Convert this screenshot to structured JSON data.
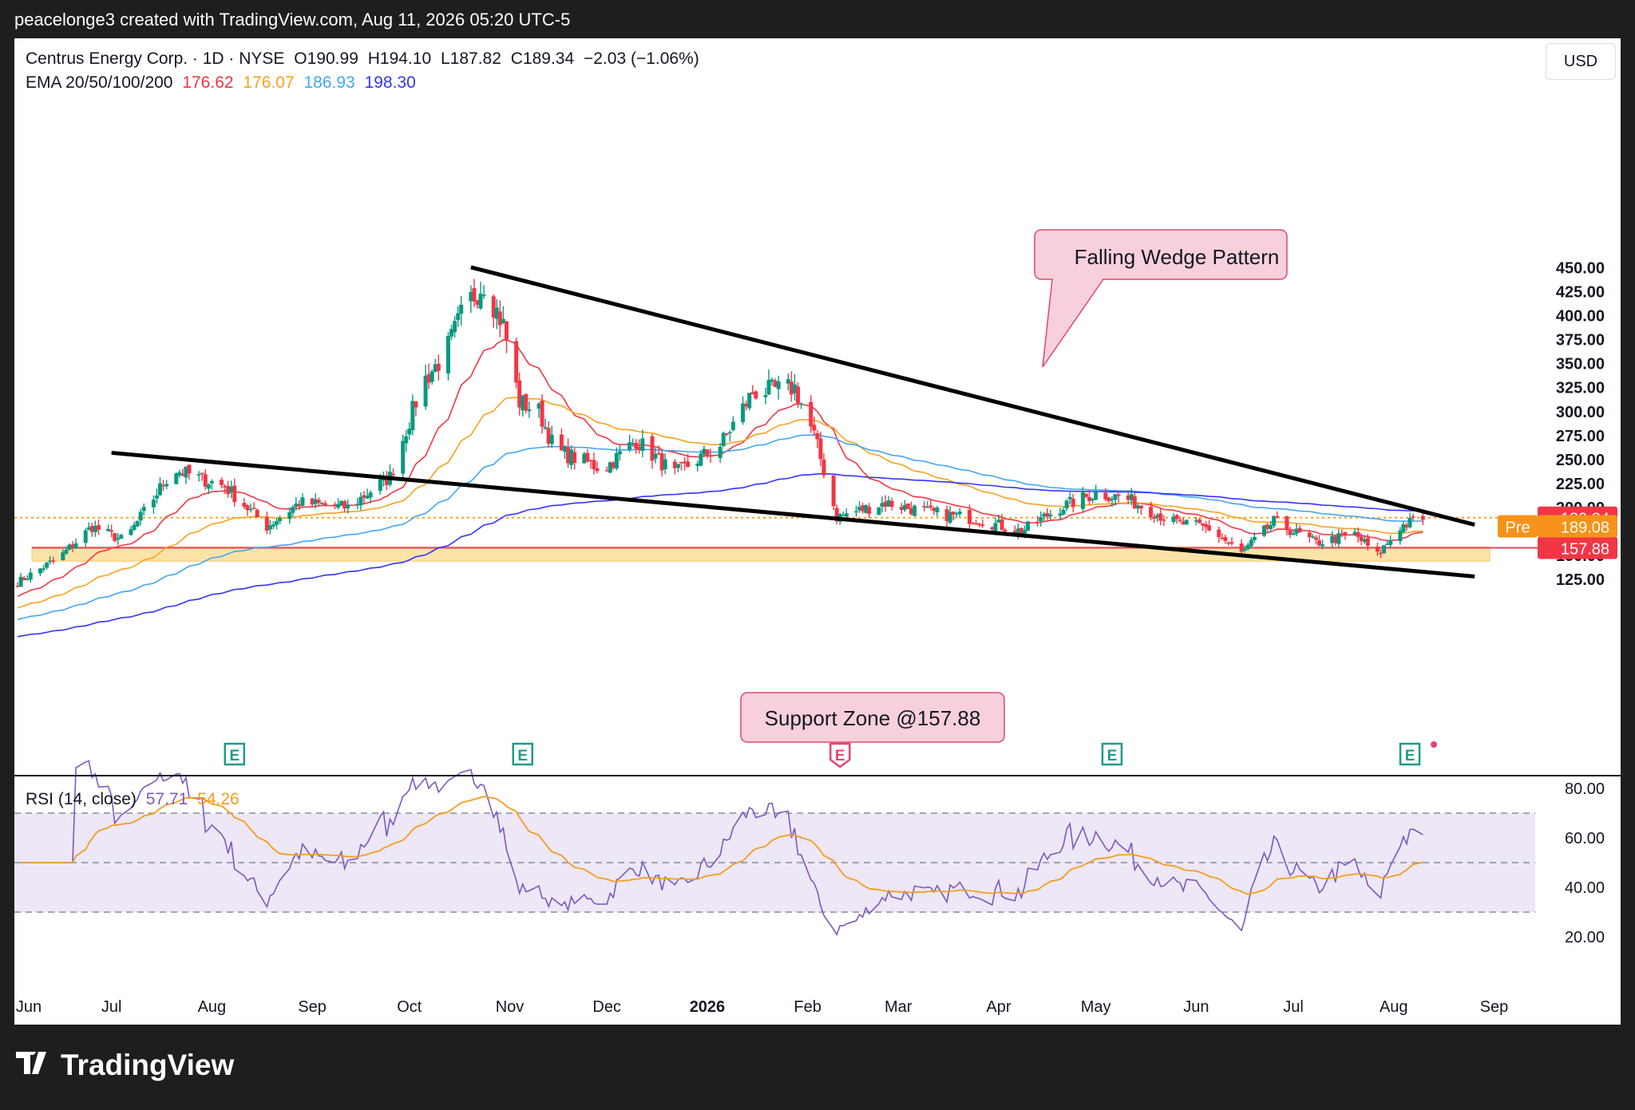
{
  "header": {
    "attribution": "peacelonge3 created with TradingView.com, Aug 11, 2026 05:20 UTC-5"
  },
  "legend": {
    "symbol": "Centrus Energy Corp. · 1D · NYSE",
    "open_label": "O",
    "open": "190.99",
    "high_label": "H",
    "high": "194.10",
    "low_label": "L",
    "low": "187.82",
    "close_label": "C",
    "close": "189.34",
    "change": "−2.03 (−1.06%)",
    "ema_label": "EMA 20/50/100/200",
    "ema_values": [
      "176.62",
      "176.07",
      "186.93",
      "198.30"
    ],
    "rsi_label": "RSI (14, close)",
    "rsi_values": [
      "57.71",
      "54.26"
    ]
  },
  "currency_button": "USD",
  "colors": {
    "up": "#089981",
    "down": "#f23645",
    "ema20": "#f23645",
    "ema50": "#f7a21b",
    "ema100": "#42a5f5",
    "ema200": "#3333ff",
    "rsi": "#7e57c2",
    "rsi_ma": "#f59d1d",
    "support_fill": "#fbe3a8",
    "annotation_fill": "#f8d0dc",
    "annotation_border": "#e0476e"
  },
  "price_axis": {
    "ticks": [
      "450.00",
      "425.00",
      "400.00",
      "375.00",
      "350.00",
      "325.00",
      "300.00",
      "275.00",
      "250.00",
      "225.00",
      "200.00",
      "150.00",
      "125.00"
    ]
  },
  "price_labels": {
    "last": "189.34",
    "pre_label": "Pre",
    "pre": "189.08",
    "support": "157.88"
  },
  "rsi_axis": {
    "ticks": [
      "80.00",
      "60.00",
      "40.00",
      "20.00"
    ]
  },
  "time_axis": {
    "labels": [
      "Jun",
      "Jul",
      "Aug",
      "Sep",
      "Oct",
      "Nov",
      "Dec",
      "2026",
      "Feb",
      "Mar",
      "Apr",
      "May",
      "Jun",
      "Jul",
      "Aug",
      "Sep"
    ]
  },
  "annotations": {
    "wedge": "Falling Wedge Pattern",
    "support": "Support Zone @157.88"
  },
  "earnings_marker": "E",
  "brand": "TradingView",
  "chart_data": {
    "type": "candlestick",
    "title": "Centrus Energy Corp. · 1D · NYSE",
    "ylim": [
      100,
      470
    ],
    "x_range": [
      "2025-06-01",
      "2026-09-10"
    ],
    "closing_path": [
      [
        "2025-06-01",
        120
      ],
      [
        "2025-06-15",
        148
      ],
      [
        "2025-06-25",
        180
      ],
      [
        "2025-07-05",
        165
      ],
      [
        "2025-07-20",
        240
      ],
      [
        "2025-08-05",
        222
      ],
      [
        "2025-08-18",
        180
      ],
      [
        "2025-08-28",
        205
      ],
      [
        "2025-09-12",
        200
      ],
      [
        "2025-09-25",
        232
      ],
      [
        "2025-10-05",
        330
      ],
      [
        "2025-10-12",
        360
      ],
      [
        "2025-10-18",
        408
      ],
      [
        "2025-10-24",
        435
      ],
      [
        "2025-10-30",
        390
      ],
      [
        "2025-11-04",
        310
      ],
      [
        "2025-11-10",
        300
      ],
      [
        "2025-11-15",
        260
      ],
      [
        "2025-11-30",
        240
      ],
      [
        "2025-12-10",
        270
      ],
      [
        "2025-12-22",
        235
      ],
      [
        "2026-01-05",
        265
      ],
      [
        "2026-01-15",
        320
      ],
      [
        "2026-01-28",
        325
      ],
      [
        "2026-02-03",
        275
      ],
      [
        "2026-02-10",
        190
      ],
      [
        "2026-02-25",
        205
      ],
      [
        "2026-03-10",
        195
      ],
      [
        "2026-03-25",
        188
      ],
      [
        "2026-04-08",
        175
      ],
      [
        "2026-04-20",
        200
      ],
      [
        "2026-05-01",
        215
      ],
      [
        "2026-05-10",
        210
      ],
      [
        "2026-05-25",
        185
      ],
      [
        "2026-06-05",
        178
      ],
      [
        "2026-06-15",
        152
      ],
      [
        "2026-06-25",
        185
      ],
      [
        "2026-07-08",
        163
      ],
      [
        "2026-07-20",
        172
      ],
      [
        "2026-07-27",
        150
      ],
      [
        "2026-08-03",
        180
      ],
      [
        "2026-08-10",
        189.34
      ]
    ],
    "ema": [
      {
        "name": "EMA 20",
        "last": 176.62
      },
      {
        "name": "EMA 50",
        "last": 176.07
      },
      {
        "name": "EMA 100",
        "last": 186.93
      },
      {
        "name": "EMA 200",
        "last": 198.3
      }
    ],
    "trendlines": {
      "upper": [
        [
          "2025-10-20",
          448
        ],
        [
          "2026-08-26",
          182
        ]
      ],
      "lower": [
        [
          "2025-07-01",
          257
        ],
        [
          "2026-08-26",
          128
        ]
      ]
    },
    "support_zone": {
      "from": 144,
      "to": 158.8,
      "level": 157.88
    },
    "earnings_dates": [
      "2025-08-08",
      "2025-11-05",
      "2026-02-11",
      "2026-05-06",
      "2026-08-06"
    ],
    "rsi": {
      "period": 14,
      "last": 57.71,
      "ma_last": 54.26,
      "ylim": [
        12,
        88
      ],
      "bands": [
        70,
        50,
        30
      ]
    }
  }
}
